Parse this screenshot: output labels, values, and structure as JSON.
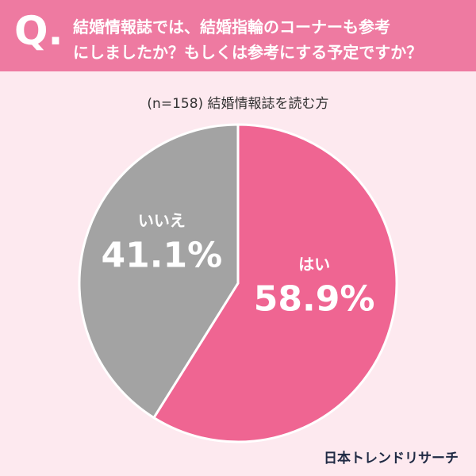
{
  "chart_data": {
    "type": "pie",
    "question_label": "Q.",
    "title_lines": [
      "結婚情報誌では、結婚指輪のコーナーも参考",
      "にしましたか？もしくは参考にする予定ですか？"
    ],
    "subtitle": "(n=158) 結婚情報誌を読む方",
    "categories": [
      "はい",
      "いいえ"
    ],
    "values": [
      58.9,
      41.1
    ],
    "value_labels": [
      "58.9%",
      "41.1%"
    ],
    "colors": [
      "#ef6592",
      "#a3a3a3"
    ],
    "source": "日本トレンドリサーチ"
  }
}
